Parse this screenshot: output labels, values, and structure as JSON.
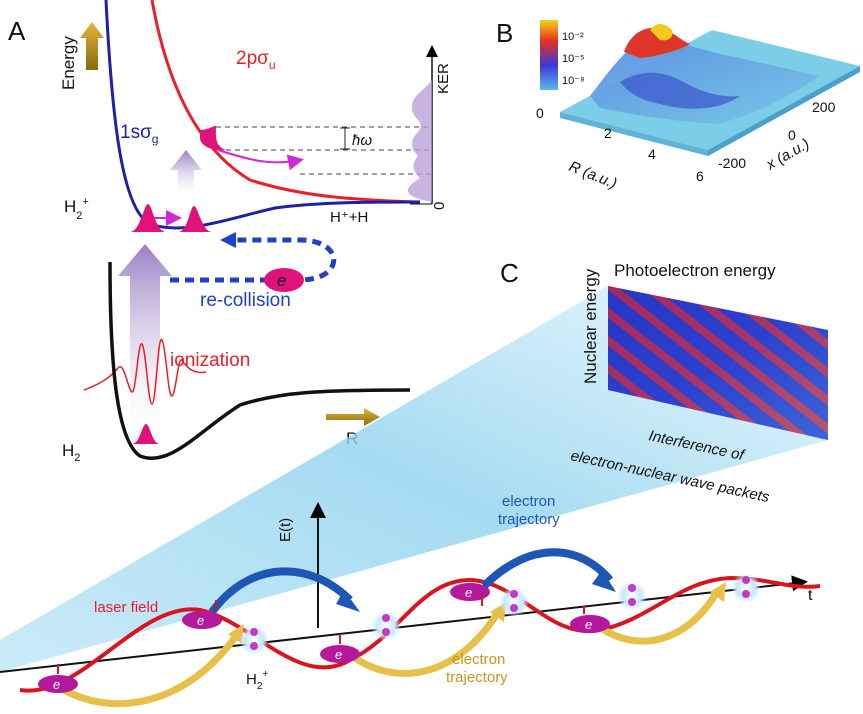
{
  "panel_a": {
    "letter": "A",
    "energy_label": "Energy",
    "curve_upper_prefix": "2pσ",
    "curve_upper_sub": "u",
    "curve_lower_prefix": "1sσ",
    "curve_lower_sub": "g",
    "ion_label": "H",
    "ion_sup": "+",
    "ion_sub": "2",
    "ker_label": "KER",
    "hbar_omega": "ħω",
    "dissociation_label": "H⁺+H",
    "zero_label": "0",
    "electron_symbol": "e",
    "recollision_label": "re-collision",
    "ionization_label": "ionization",
    "h2_label": "H",
    "h2_sub": "2",
    "r_label": "R",
    "colors": {
      "red_curve": "#e8202a",
      "blue_curve": "#1f1fa8",
      "black_curve": "#111111",
      "arrow_gold": "#c8961e",
      "arrow_purple": "#a98ccc",
      "pink": "#e0137a"
    }
  },
  "panel_b": {
    "letter": "B",
    "colorbar_ticks": [
      "10⁻²",
      "10⁻⁵",
      "10⁻⁸"
    ],
    "r_ticks": [
      "0",
      "2",
      "4",
      "6"
    ],
    "r_axis_label": "R (a.u.)",
    "x_ticks": [
      "200",
      "0",
      "-200"
    ],
    "x_axis_label": "x (a.u.)"
  },
  "panel_c": {
    "letter": "C",
    "photoelectron_energy": "Photoelectron energy",
    "nuclear_energy": "Nuclear energy",
    "interference_line1": "Interference of",
    "interference_line2": "electron-nuclear wave packets",
    "e_t_label": "E(t)",
    "t_label": "t",
    "electron_trajectory_top1": "electron",
    "electron_trajectory_top2": "trajectory",
    "electron_trajectory_bottom1": "electron",
    "electron_trajectory_bottom2": "trajectory",
    "laser_field": "laser field",
    "ion_label": "H",
    "ion_sup": "+",
    "ion_sub": "2",
    "electron_symbol": "e",
    "colors": {
      "laser": "#d8141e",
      "blue_arrow": "#1e56b4",
      "gold_arrow": "#e7c04a",
      "plane": "#8fd2ef"
    }
  }
}
